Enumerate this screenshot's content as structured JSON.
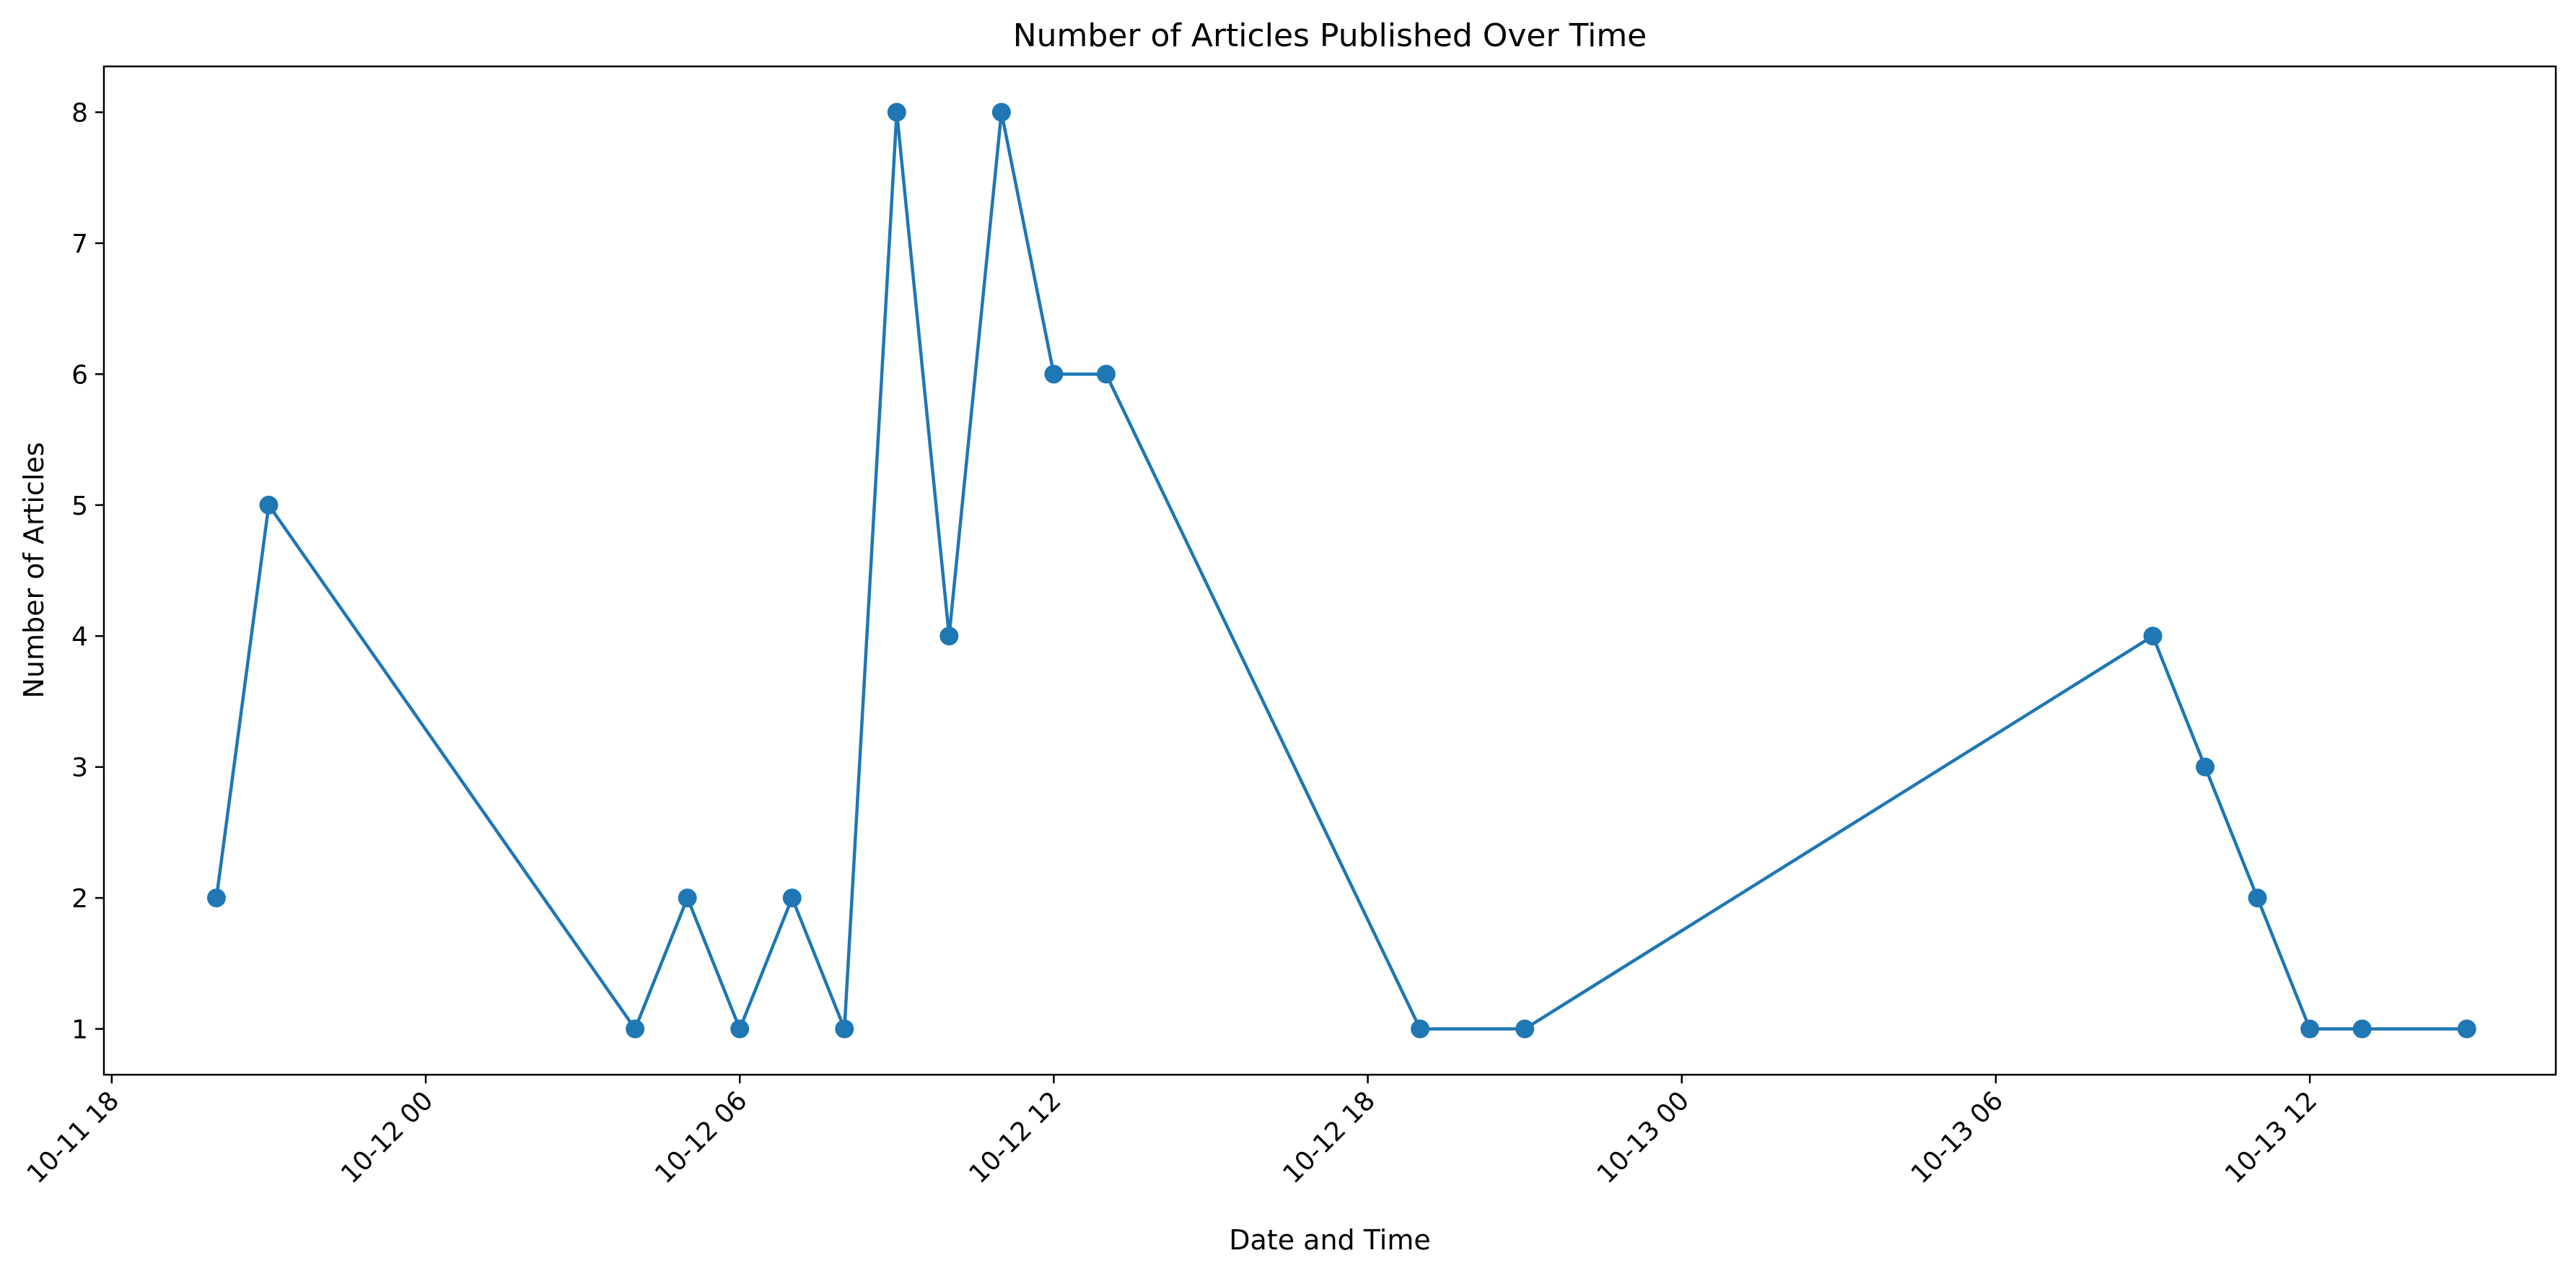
{
  "chart_data": {
    "type": "line",
    "title": "Number of Articles Published Over Time",
    "xlabel": "Date and Time",
    "ylabel": "Number of Articles",
    "x_ticks": [
      "10-11 18",
      "10-12 00",
      "10-12 06",
      "10-12 12",
      "10-12 18",
      "10-13 00",
      "10-13 06",
      "10-13 12"
    ],
    "x_tick_hours": [
      18,
      24,
      30,
      36,
      42,
      48,
      54,
      60
    ],
    "x_range_hours": [
      17.85,
      64.7
    ],
    "y_ticks": [
      1,
      2,
      3,
      4,
      5,
      6,
      7,
      8
    ],
    "ylim": [
      0.65,
      8.35
    ],
    "grid": false,
    "legend": "none",
    "colors": {
      "line": "#1f77b4",
      "marker": "#1f77b4",
      "axes": "#000000"
    },
    "series": [
      {
        "x": [
          "2023-10-11 20:00",
          "2023-10-11 21:00",
          "2023-10-12 04:00",
          "2023-10-12 05:00",
          "2023-10-12 06:00",
          "2023-10-12 07:00",
          "2023-10-12 08:00",
          "2023-10-12 09:00",
          "2023-10-12 10:00",
          "2023-10-12 11:00",
          "2023-10-12 12:00",
          "2023-10-12 13:00",
          "2023-10-12 19:00",
          "2023-10-12 21:00",
          "2023-10-13 09:00",
          "2023-10-13 10:00",
          "2023-10-13 11:00",
          "2023-10-13 12:00",
          "2023-10-13 13:00",
          "2023-10-13 15:00"
        ],
        "x_hours": [
          20,
          21,
          28,
          29,
          30,
          31,
          32,
          33,
          34,
          35,
          36,
          37,
          43,
          45,
          57,
          58,
          59,
          60,
          61,
          63
        ],
        "values": [
          2,
          5,
          1,
          2,
          1,
          2,
          1,
          8,
          4,
          8,
          6,
          6,
          1,
          1,
          4,
          3,
          2,
          1,
          1,
          1
        ]
      }
    ]
  }
}
